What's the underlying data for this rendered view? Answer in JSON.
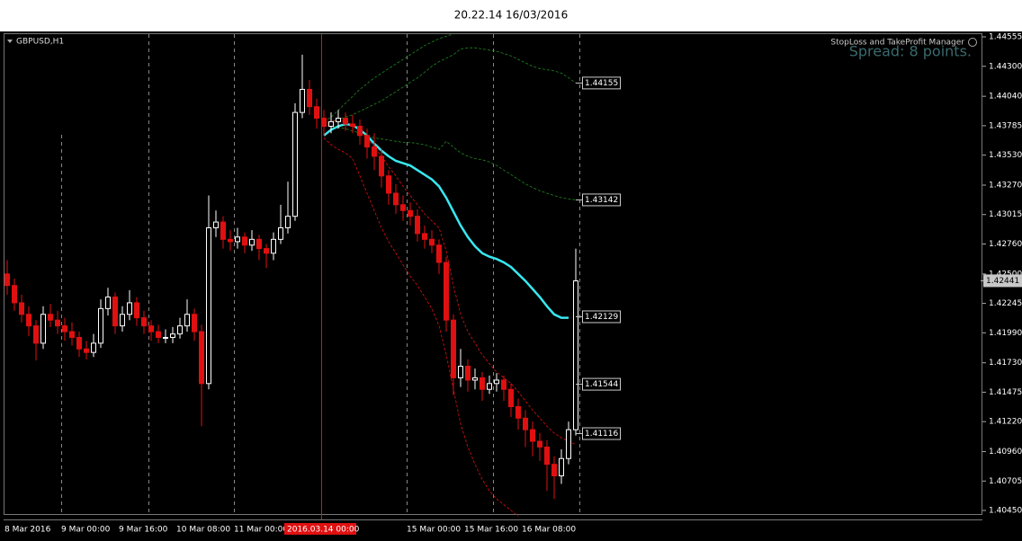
{
  "chart_data": {
    "type": "candlestick",
    "title": "20.22.14 16/03/2016",
    "symbol": "GBPUSD,H1",
    "panel_title": "StopLoss and TakeProfit Manager",
    "spread": "Spread: 8 points.",
    "current_price": 1.42441,
    "ylim": [
      1.40419,
      1.44602
    ],
    "yticks": [
      {
        "value": 1.44555,
        "label": "1.44555"
      },
      {
        "value": 1.443,
        "label": "1.44300"
      },
      {
        "value": 1.4404,
        "label": "1.44040"
      },
      {
        "value": 1.43785,
        "label": "1.43785"
      },
      {
        "value": 1.4353,
        "label": "1.43530"
      },
      {
        "value": 1.4327,
        "label": "1.43270"
      },
      {
        "value": 1.43015,
        "label": "1.43015"
      },
      {
        "value": 1.4276,
        "label": "1.42760"
      },
      {
        "value": 1.425,
        "label": "1.42500"
      },
      {
        "value": 1.42245,
        "label": "1.42245"
      },
      {
        "value": 1.4199,
        "label": "1.41990"
      },
      {
        "value": 1.4173,
        "label": "1.41730"
      },
      {
        "value": 1.41475,
        "label": "1.41475"
      },
      {
        "value": 1.4122,
        "label": "1.41220"
      },
      {
        "value": 1.4096,
        "label": "1.40960"
      },
      {
        "value": 1.40705,
        "label": "1.40705"
      },
      {
        "value": 1.4045,
        "label": "1.40450"
      }
    ],
    "xticks": [
      "8 Mar 2016",
      "9 Mar 00:00",
      "9 Mar 16:00",
      "10 Mar 08:00",
      "11 Mar 00:00",
      "2016.03.14 00:00",
      "15 Mar 00:00",
      "15 Mar 16:00",
      "16 Mar 08:00"
    ],
    "levels": [
      1.44155,
      1.43142,
      1.42129,
      1.41544,
      1.41116
    ],
    "bull_color": "#ffffff",
    "bear_color": "#e01010",
    "candles": [
      [
        1.425,
        1.4262,
        1.4232,
        1.424
      ],
      [
        1.424,
        1.4246,
        1.4218,
        1.4225
      ],
      [
        1.4225,
        1.4232,
        1.4208,
        1.4215
      ],
      [
        1.4215,
        1.4222,
        1.4196,
        1.4205
      ],
      [
        1.4205,
        1.421,
        1.4175,
        1.419
      ],
      [
        1.419,
        1.4222,
        1.4185,
        1.4215
      ],
      [
        1.4215,
        1.4224,
        1.4204,
        1.421
      ],
      [
        1.421,
        1.4218,
        1.4198,
        1.4205
      ],
      [
        1.4205,
        1.4212,
        1.4192,
        1.42
      ],
      [
        1.42,
        1.4208,
        1.4188,
        1.4195
      ],
      [
        1.4195,
        1.42,
        1.4178,
        1.4185
      ],
      [
        1.4185,
        1.4192,
        1.4176,
        1.4182
      ],
      [
        1.4182,
        1.4198,
        1.4178,
        1.419
      ],
      [
        1.419,
        1.4228,
        1.4186,
        1.422
      ],
      [
        1.422,
        1.4238,
        1.4214,
        1.423
      ],
      [
        1.423,
        1.4234,
        1.4198,
        1.4205
      ],
      [
        1.4205,
        1.4222,
        1.42,
        1.4215
      ],
      [
        1.4215,
        1.4236,
        1.421,
        1.4225
      ],
      [
        1.4225,
        1.423,
        1.4205,
        1.4212
      ],
      [
        1.4212,
        1.4218,
        1.4198,
        1.4205
      ],
      [
        1.4205,
        1.421,
        1.4192,
        1.42
      ],
      [
        1.42,
        1.4206,
        1.419,
        1.4195
      ],
      [
        1.4195,
        1.4202,
        1.419,
        1.4195
      ],
      [
        1.4195,
        1.4204,
        1.419,
        1.4198
      ],
      [
        1.4198,
        1.4212,
        1.4194,
        1.4205
      ],
      [
        1.4205,
        1.4228,
        1.42,
        1.4215
      ],
      [
        1.4215,
        1.422,
        1.4192,
        1.42
      ],
      [
        1.42,
        1.4206,
        1.4118,
        1.4155
      ],
      [
        1.4155,
        1.4318,
        1.415,
        1.429
      ],
      [
        1.429,
        1.4305,
        1.4282,
        1.4295
      ],
      [
        1.4295,
        1.43,
        1.4272,
        1.428
      ],
      [
        1.428,
        1.4288,
        1.427,
        1.4278
      ],
      [
        1.4278,
        1.429,
        1.4272,
        1.4282
      ],
      [
        1.4282,
        1.4286,
        1.4268,
        1.4275
      ],
      [
        1.4275,
        1.4288,
        1.427,
        1.428
      ],
      [
        1.428,
        1.4284,
        1.4262,
        1.4272
      ],
      [
        1.4272,
        1.4276,
        1.4255,
        1.4268
      ],
      [
        1.4268,
        1.4286,
        1.4262,
        1.428
      ],
      [
        1.428,
        1.431,
        1.4276,
        1.429
      ],
      [
        1.429,
        1.433,
        1.4285,
        1.43
      ],
      [
        1.43,
        1.4398,
        1.4296,
        1.439
      ],
      [
        1.439,
        1.444,
        1.4385,
        1.441
      ],
      [
        1.441,
        1.4418,
        1.4388,
        1.4395
      ],
      [
        1.4395,
        1.4402,
        1.4376,
        1.4385
      ],
      [
        1.4385,
        1.4392,
        1.437,
        1.4378
      ],
      [
        1.4378,
        1.439,
        1.4372,
        1.4382
      ],
      [
        1.4382,
        1.4392,
        1.4376,
        1.4385
      ],
      [
        1.4385,
        1.439,
        1.4374,
        1.438
      ],
      [
        1.438,
        1.4388,
        1.4372,
        1.4378
      ],
      [
        1.4378,
        1.4384,
        1.4362,
        1.437
      ],
      [
        1.437,
        1.4376,
        1.435,
        1.436
      ],
      [
        1.436,
        1.4372,
        1.434,
        1.4352
      ],
      [
        1.4352,
        1.4358,
        1.4325,
        1.4335
      ],
      [
        1.4335,
        1.434,
        1.431,
        1.432
      ],
      [
        1.432,
        1.4328,
        1.4302,
        1.431
      ],
      [
        1.431,
        1.4318,
        1.4296,
        1.4305
      ],
      [
        1.4305,
        1.4312,
        1.4292,
        1.43
      ],
      [
        1.43,
        1.4306,
        1.4278,
        1.4285
      ],
      [
        1.4285,
        1.4292,
        1.4272,
        1.428
      ],
      [
        1.428,
        1.4288,
        1.4268,
        1.4275
      ],
      [
        1.4275,
        1.428,
        1.425,
        1.426
      ],
      [
        1.426,
        1.4265,
        1.42,
        1.421
      ],
      [
        1.421,
        1.4215,
        1.4145,
        1.416
      ],
      [
        1.416,
        1.4185,
        1.4152,
        1.417
      ],
      [
        1.417,
        1.4176,
        1.4148,
        1.4158
      ],
      [
        1.4158,
        1.4168,
        1.415,
        1.416
      ],
      [
        1.416,
        1.4165,
        1.414,
        1.415
      ],
      [
        1.415,
        1.4162,
        1.4146,
        1.4155
      ],
      [
        1.4155,
        1.4164,
        1.4148,
        1.4158
      ],
      [
        1.4158,
        1.4162,
        1.414,
        1.415
      ],
      [
        1.415,
        1.4155,
        1.4126,
        1.4135
      ],
      [
        1.4135,
        1.4142,
        1.4115,
        1.4125
      ],
      [
        1.4125,
        1.4132,
        1.41,
        1.4115
      ],
      [
        1.4115,
        1.4122,
        1.4092,
        1.4105
      ],
      [
        1.4105,
        1.4112,
        1.4088,
        1.41
      ],
      [
        1.41,
        1.4106,
        1.4062,
        1.4085
      ],
      [
        1.4085,
        1.4092,
        1.4055,
        1.4075
      ],
      [
        1.4075,
        1.4098,
        1.4068,
        1.409
      ],
      [
        1.409,
        1.4122,
        1.4085,
        1.4115
      ],
      [
        1.4115,
        1.4272,
        1.411,
        1.4244
      ]
    ],
    "series": [
      {
        "color": "#38e8f0",
        "width": 2.5,
        "dash": false,
        "values": [
          null,
          null,
          null,
          null,
          null,
          null,
          null,
          null,
          null,
          null,
          null,
          null,
          null,
          null,
          null,
          null,
          null,
          null,
          null,
          null,
          null,
          null,
          null,
          null,
          null,
          null,
          null,
          null,
          null,
          null,
          null,
          null,
          null,
          null,
          null,
          null,
          null,
          null,
          null,
          null,
          null,
          null,
          null,
          null,
          1.437,
          1.4375,
          1.4378,
          1.438,
          1.4379,
          1.4375,
          1.437,
          1.4363,
          1.4357,
          1.4352,
          1.4348,
          1.4346,
          1.4344,
          1.434,
          1.4336,
          1.4332,
          1.4326,
          1.4316,
          1.4304,
          1.4292,
          1.4282,
          1.4274,
          1.4268,
          1.4265,
          1.4263,
          1.426,
          1.4256,
          1.425,
          1.4244,
          1.4237,
          1.423,
          1.4222,
          1.4215,
          1.4212,
          1.4212,
          null
        ]
      },
      {
        "color": "#1f8a1f",
        "width": 0.8,
        "dash": true,
        "values": [
          null,
          null,
          null,
          null,
          null,
          null,
          null,
          null,
          null,
          null,
          null,
          null,
          null,
          null,
          null,
          null,
          null,
          null,
          null,
          null,
          null,
          null,
          null,
          null,
          null,
          null,
          null,
          null,
          null,
          null,
          null,
          null,
          null,
          null,
          null,
          null,
          null,
          null,
          null,
          null,
          null,
          null,
          null,
          null,
          1.4382,
          1.4386,
          1.4392,
          1.4398,
          1.4404,
          1.441,
          1.4415,
          1.442,
          1.4424,
          1.4428,
          1.4432,
          1.4436,
          1.444,
          1.4444,
          1.4448,
          1.4451,
          1.4454,
          1.4456,
          1.4458,
          null,
          null,
          null,
          null,
          null,
          null,
          null,
          null,
          null,
          null,
          null,
          null,
          null,
          null,
          null,
          null,
          null
        ]
      },
      {
        "color": "#1f8a1f",
        "width": 0.8,
        "dash": true,
        "values": [
          null,
          null,
          null,
          null,
          null,
          null,
          null,
          null,
          null,
          null,
          null,
          null,
          null,
          null,
          null,
          null,
          null,
          null,
          null,
          null,
          null,
          null,
          null,
          null,
          null,
          null,
          null,
          null,
          null,
          null,
          null,
          null,
          null,
          null,
          null,
          null,
          null,
          null,
          null,
          null,
          null,
          null,
          null,
          null,
          1.438,
          1.4382,
          1.4384,
          1.4386,
          1.4388,
          1.4391,
          1.4394,
          1.4397,
          1.44,
          1.4404,
          1.4408,
          1.4412,
          1.4416,
          1.442,
          1.4425,
          1.443,
          1.4434,
          1.4437,
          1.444,
          1.4445,
          1.4446,
          1.4446,
          1.4445,
          1.4444,
          1.4443,
          1.4441,
          1.4439,
          1.4436,
          1.4433,
          1.443,
          1.4428,
          1.4427,
          1.4426,
          1.4424,
          1.442,
          1.44155
        ]
      },
      {
        "color": "#1f8a1f",
        "width": 0.8,
        "dash": true,
        "values": [
          null,
          null,
          null,
          null,
          null,
          null,
          null,
          null,
          null,
          null,
          null,
          null,
          null,
          null,
          null,
          null,
          null,
          null,
          null,
          null,
          null,
          null,
          null,
          null,
          null,
          null,
          null,
          null,
          null,
          null,
          null,
          null,
          null,
          null,
          null,
          null,
          null,
          null,
          null,
          null,
          null,
          null,
          null,
          null,
          1.4378,
          1.4378,
          1.4377,
          1.4376,
          1.4374,
          1.4372,
          1.437,
          1.4368,
          1.4367,
          1.4366,
          1.4365,
          1.4364,
          1.4364,
          1.4363,
          1.4362,
          1.436,
          1.4358,
          1.4365,
          1.436,
          1.4355,
          1.4352,
          1.435,
          1.4349,
          1.4347,
          1.4344,
          1.434,
          1.4336,
          1.4332,
          1.4328,
          1.4325,
          1.4322,
          1.432,
          1.4318,
          1.4316,
          1.4315,
          1.43142
        ]
      },
      {
        "color": "#e01010",
        "width": 0.8,
        "dash": true,
        "values": [
          null,
          null,
          null,
          null,
          null,
          null,
          null,
          null,
          null,
          null,
          null,
          null,
          null,
          null,
          null,
          null,
          null,
          null,
          null,
          null,
          null,
          null,
          null,
          null,
          null,
          null,
          null,
          null,
          null,
          null,
          null,
          null,
          null,
          null,
          null,
          null,
          null,
          null,
          null,
          null,
          null,
          null,
          null,
          null,
          1.438,
          1.4382,
          1.4383,
          1.4382,
          1.4378,
          1.4374,
          1.4368,
          1.436,
          1.4352,
          1.4343,
          1.4335,
          1.4326,
          1.4318,
          1.431,
          1.4302,
          1.4296,
          1.429,
          1.427,
          1.424,
          1.4215,
          1.42,
          1.419,
          1.418,
          1.4172,
          1.4165,
          1.416,
          1.4155,
          1.4148,
          1.414,
          1.4132,
          1.4125,
          1.4118,
          1.4112,
          1.4108,
          1.4105,
          1.4102
        ]
      },
      {
        "color": "#e01010",
        "width": 0.8,
        "dash": true,
        "values": [
          null,
          null,
          null,
          null,
          null,
          null,
          null,
          null,
          null,
          null,
          null,
          null,
          null,
          null,
          null,
          null,
          null,
          null,
          null,
          null,
          null,
          null,
          null,
          null,
          null,
          null,
          null,
          null,
          null,
          null,
          null,
          null,
          null,
          null,
          null,
          null,
          null,
          null,
          null,
          null,
          null,
          null,
          null,
          null,
          1.4368,
          1.4362,
          1.4358,
          1.4355,
          1.435,
          1.4335,
          1.432,
          1.4305,
          1.429,
          1.4278,
          1.4268,
          1.4258,
          1.4248,
          1.424,
          1.423,
          1.422,
          1.4205,
          1.418,
          1.415,
          1.412,
          1.41,
          1.4085,
          1.4072,
          1.4062,
          1.4055,
          1.405,
          1.4045,
          1.404,
          null,
          null,
          null,
          null,
          null,
          null,
          null,
          null
        ]
      }
    ]
  }
}
